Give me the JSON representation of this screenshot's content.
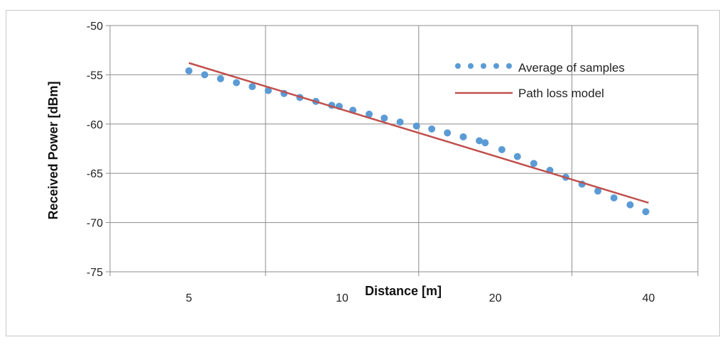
{
  "chart_data": {
    "type": "scatter",
    "xlabel": "Distance [m]",
    "ylabel": "Received Power [dBm]",
    "x_scale": "log2",
    "xlim": [
      3.5,
      50
    ],
    "ylim": [
      -75,
      -50
    ],
    "x_ticks": [
      5,
      10,
      20,
      40
    ],
    "x_tick_labels": [
      "5",
      "10",
      "20",
      "40"
    ],
    "y_ticks": [
      -75,
      -70,
      -65,
      -60,
      -55,
      -50
    ],
    "y_tick_labels": [
      "-75",
      "-70",
      "-65",
      "-60",
      "-55",
      "-50"
    ],
    "grid": true,
    "legend_position": "top-right",
    "series": [
      {
        "name": "Average of samples",
        "kind": "points",
        "color": "#5b9bd5",
        "x": [
          5.0,
          5.37,
          5.77,
          6.2,
          6.66,
          7.16,
          7.69,
          8.26,
          8.88,
          9.54,
          9.87,
          10.5,
          11.3,
          12.1,
          13.0,
          14.0,
          15.0,
          16.1,
          17.3,
          18.6,
          19.1,
          20.6,
          22.1,
          23.8,
          25.6,
          27.5,
          29.6,
          31.8,
          34.2,
          36.8,
          39.5
        ],
        "y": [
          -54.6,
          -55.0,
          -55.4,
          -55.8,
          -56.2,
          -56.6,
          -56.9,
          -57.3,
          -57.7,
          -58.1,
          -58.2,
          -58.6,
          -59.0,
          -59.4,
          -59.8,
          -60.2,
          -60.5,
          -60.9,
          -61.3,
          -61.7,
          -61.9,
          -62.6,
          -63.3,
          -64.0,
          -64.7,
          -65.4,
          -66.1,
          -66.8,
          -67.5,
          -68.2,
          -68.9
        ]
      },
      {
        "name": "Path loss model",
        "kind": "line",
        "color": "#c0504d",
        "x": [
          5,
          40
        ],
        "y": [
          -53.8,
          -68.0
        ]
      }
    ]
  }
}
